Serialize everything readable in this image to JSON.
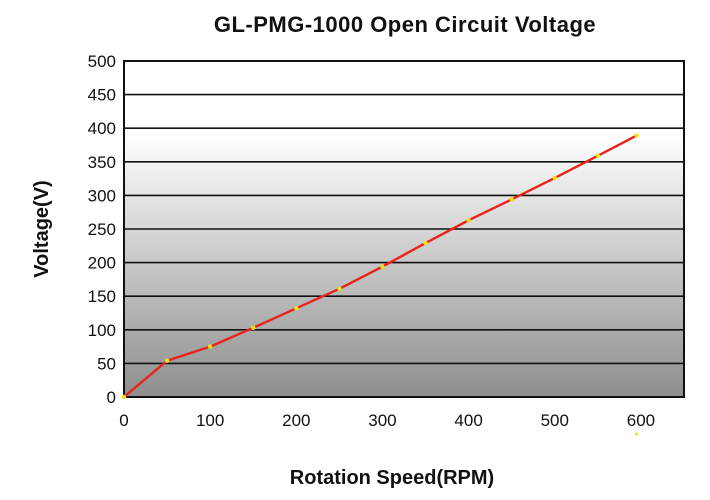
{
  "chart_data": {
    "type": "line",
    "title": "GL-PMG-1000 Open Circuit Voltage",
    "xlabel": "Rotation Speed(RPM)",
    "ylabel": "Voltage(V)",
    "xlim": [
      0,
      650
    ],
    "ylim": [
      0,
      500
    ],
    "x_ticks": [
      0,
      100,
      200,
      300,
      400,
      500,
      600
    ],
    "y_ticks": [
      0,
      50,
      100,
      150,
      200,
      250,
      300,
      350,
      400,
      450,
      500
    ],
    "grid": true,
    "legend": "none",
    "series": [
      {
        "color": "#e8231c",
        "marker_color": "#f5e400",
        "x": [
          0,
          50,
          100,
          150,
          200,
          250,
          300,
          350,
          400,
          450,
          500,
          550,
          595
        ],
        "y": [
          0,
          54,
          75,
          103,
          132,
          161,
          194,
          229,
          263,
          294,
          326,
          359,
          389
        ]
      }
    ],
    "extra_points": [
      {
        "x": 595,
        "y": -55,
        "color": "#f5e400"
      }
    ],
    "background_gradient": [
      "#ffffff",
      "#8e8e8e"
    ]
  }
}
